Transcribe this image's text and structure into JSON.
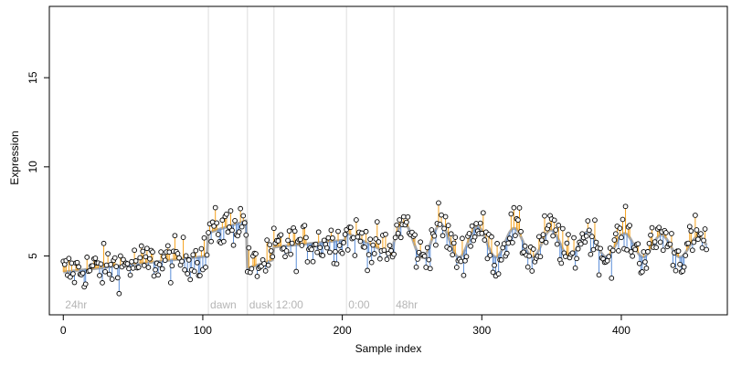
{
  "chart_data": {
    "type": "scatter",
    "title": "",
    "xlabel": "Sample index",
    "ylabel": "Expression",
    "xlim": [
      -10,
      476
    ],
    "ylim": [
      1.7,
      19.0
    ],
    "x_ticks": [
      0,
      100,
      200,
      300,
      400
    ],
    "y_ticks": [
      5,
      10,
      15
    ],
    "grid": false,
    "legend": "none",
    "colors": {
      "points": "#000000",
      "fit_line": "#a9a9a9",
      "residual_positive": "#f5a11b",
      "residual_negative": "#5b8ed8",
      "separator": "#dddddd",
      "segment_label": "#b5b5b5"
    },
    "segments": [
      {
        "label": "24hr",
        "start": 0
      },
      {
        "label": "dawn",
        "start": 104
      },
      {
        "label": "dusk",
        "start": 132
      },
      {
        "label": "12:00",
        "start": 151
      },
      {
        "label": "0:00",
        "start": 203
      },
      {
        "label": "48hr",
        "start": 237
      }
    ],
    "series": [
      {
        "kind": "fit",
        "description_level_by_segment": [
          {
            "from": 0,
            "to": 104,
            "baseline": 4.1,
            "trend_end": 5.0
          },
          {
            "from": 104,
            "to": 132,
            "baseline": 6.3,
            "trend_end": 7.0
          },
          {
            "from": 132,
            "to": 151,
            "baseline": 4.3,
            "trend_end": 4.8
          },
          {
            "from": 151,
            "to": 203,
            "baseline": 5.5,
            "trend_end": 5.9
          },
          {
            "from": 203,
            "to": 237,
            "baseline": 6.3,
            "trend_end": 5.0
          },
          {
            "from": 237,
            "to": 462,
            "baseline": 5.9,
            "trend_end": 5.5
          }
        ],
        "n_samples": 462
      }
    ]
  }
}
